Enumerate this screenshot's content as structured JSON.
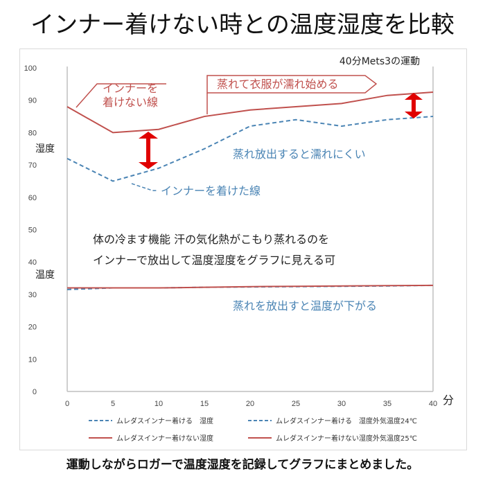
{
  "title": "インナー着けない時との温度湿度を比較",
  "caption": "運動しながらロガーで温度湿度を記録してグラフにまとめました。",
  "colors": {
    "red": "#c0504d",
    "blue": "#4a84b4",
    "axis": "#bfbfbf",
    "grid": "#e6e6e6",
    "arrow": "#e00000"
  },
  "chart_data": {
    "type": "line",
    "x": [
      0,
      5,
      10,
      15,
      20,
      25,
      30,
      35,
      40
    ],
    "xunit": "分",
    "ylim": [
      0,
      100
    ],
    "yticks": [
      0,
      10,
      20,
      30,
      40,
      50,
      60,
      70,
      80,
      90,
      100
    ],
    "xticks": [
      0,
      5,
      10,
      15,
      20,
      25,
      30,
      35,
      40
    ],
    "y_label_humidity": "湿度",
    "y_label_temperature": "温度",
    "top_right_note": "40分Mets3の運動",
    "series": [
      {
        "name": "ムレダスインナー着ける　湿度",
        "style": "dashed",
        "color": "#4a84b4",
        "values": [
          72,
          65,
          69,
          75,
          82,
          84,
          82,
          84,
          85
        ]
      },
      {
        "name": "ムレダスインナー着けない湿度",
        "style": "solid",
        "color": "#c0504d",
        "values": [
          88,
          80,
          81,
          85,
          87,
          88,
          89,
          91.5,
          92.5
        ]
      },
      {
        "name": "ムレダスインナー着ける　湿度外気温度24℃",
        "style": "dashed",
        "color": "#4a84b4",
        "values": [
          31.5,
          32,
          32,
          32.2,
          32.3,
          32.4,
          32.5,
          32.6,
          32.8
        ]
      },
      {
        "name": "ムレダスインナー着けない湿度外気温度25℃",
        "style": "solid",
        "color": "#c0504d",
        "values": [
          32,
          32,
          32,
          32.2,
          32.4,
          32.5,
          32.6,
          32.7,
          32.8
        ]
      }
    ],
    "annotations": {
      "no_inner_line": [
        "インナーを",
        "着けない線"
      ],
      "soak_arrow": "蒸れて衣服が濡れ始める",
      "release_text": "蒸れ放出すると濡れにくい",
      "inner_line": "インナーを着けた線",
      "explain_1": "体の冷ます機能 汗の気化熱がこもり蒸れるのを",
      "explain_2": "インナーで放出して温度湿度をグラフに見える可",
      "temp_text": "蒸れを放出すと温度が下がる"
    }
  }
}
